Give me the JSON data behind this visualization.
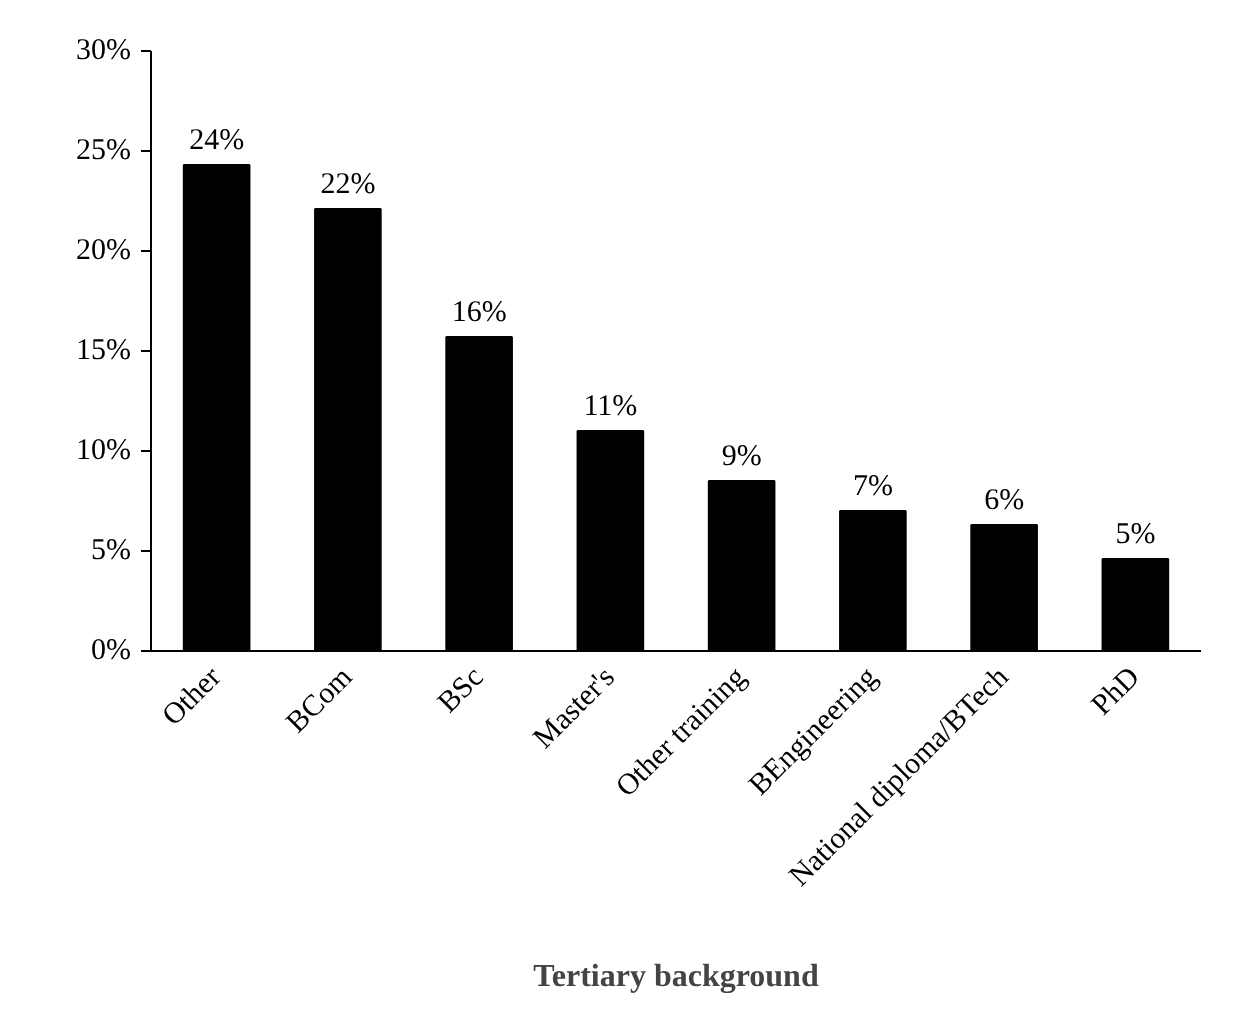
{
  "chart_data": {
    "type": "bar",
    "xlabel": "Tertiary background",
    "categories": [
      "Other",
      "BCom",
      "BSc",
      "Master's",
      "Other training",
      "BEngineering",
      "National diploma/BTech",
      "PhD"
    ],
    "values": [
      24.3,
      22.1,
      15.7,
      11.0,
      8.5,
      7.0,
      6.3,
      4.6
    ],
    "value_labels": [
      "24%",
      "22%",
      "16%",
      "11%",
      "9%",
      "7%",
      "6%",
      "5%"
    ],
    "color": "#000000",
    "ylim": [
      0,
      30
    ],
    "yticks": [
      {
        "value": 0,
        "label": "0%"
      },
      {
        "value": 5,
        "label": "5%"
      },
      {
        "value": 10,
        "label": "10%"
      },
      {
        "value": 15,
        "label": "15%"
      },
      {
        "value": 20,
        "label": "20%"
      },
      {
        "value": 25,
        "label": "25%"
      },
      {
        "value": 30,
        "label": "30%"
      }
    ],
    "grid": false
  }
}
